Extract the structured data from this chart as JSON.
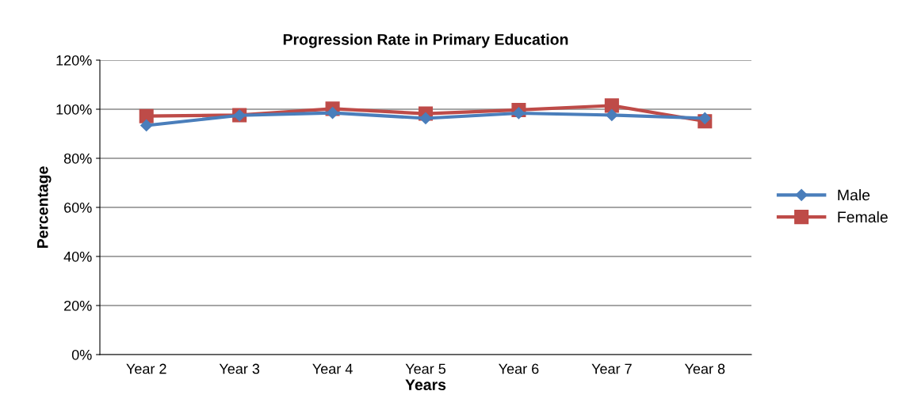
{
  "chart_data": {
    "type": "line",
    "title": "Progression Rate in Primary Education",
    "xlabel": "Years",
    "ylabel": "Percentage",
    "categories": [
      "Year 2",
      "Year 3",
      "Year 4",
      "Year 5",
      "Year 6",
      "Year 7",
      "Year 8"
    ],
    "series": [
      {
        "name": "Male",
        "color": "#4a7ebb",
        "marker": "diamond",
        "values": [
          93.4,
          97.5,
          98.5,
          96.3,
          98.4,
          97.6,
          96.3
        ]
      },
      {
        "name": "Female",
        "color": "#be4b48",
        "marker": "square",
        "values": [
          97.2,
          97.6,
          100.2,
          98.2,
          99.7,
          101.5,
          95.1
        ]
      }
    ],
    "ylim": [
      0,
      120
    ],
    "yticks": [
      {
        "value": 0,
        "label": "0%"
      },
      {
        "value": 20,
        "label": "20%"
      },
      {
        "value": 40,
        "label": "40%"
      },
      {
        "value": 60,
        "label": "60%"
      },
      {
        "value": 80,
        "label": "80%"
      },
      {
        "value": 100,
        "label": "100%"
      },
      {
        "value": 120,
        "label": "120%"
      }
    ],
    "grid": "y",
    "legend": "right"
  }
}
